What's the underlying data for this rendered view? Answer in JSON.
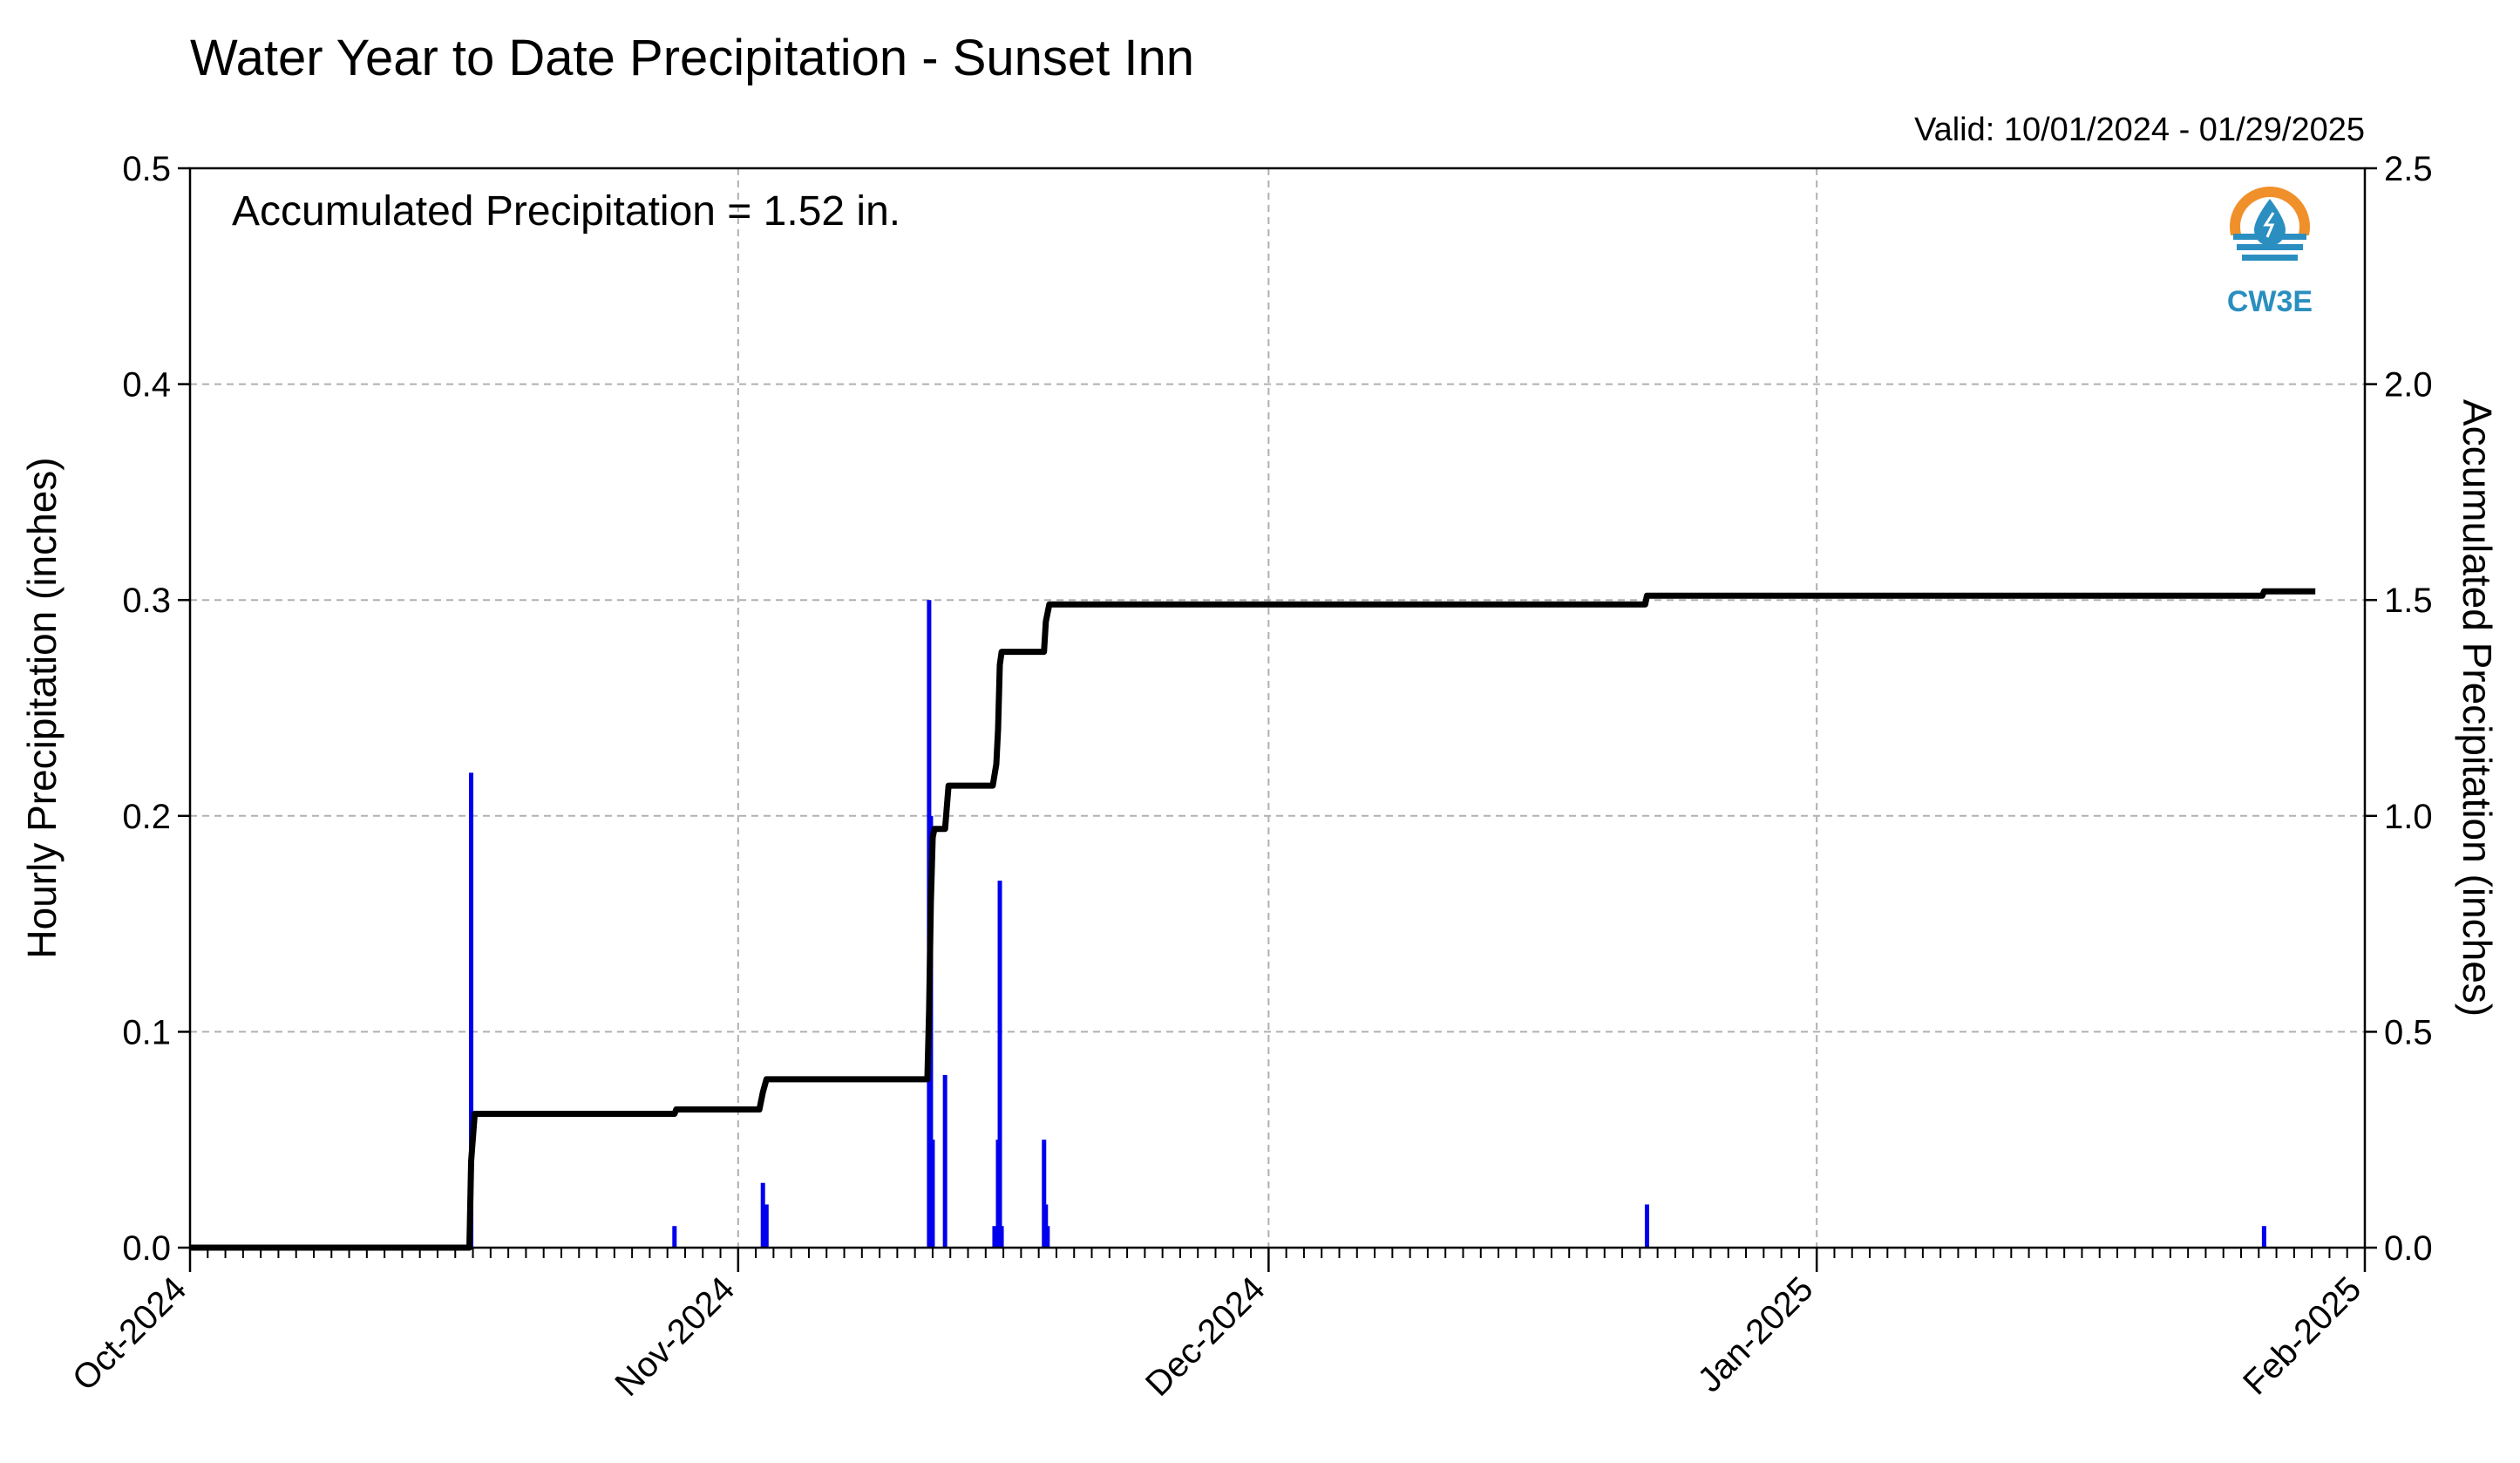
{
  "chart_data": {
    "type": "bar+line",
    "title": "Water Year to Date Precipitation - Sunset Inn",
    "valid_text": "Valid: 10/01/2024 - 01/29/2025",
    "annotation": "Accumulated Precipitation = 1.52 in.",
    "logo_text": "CW3E",
    "ylabel_left": "Hourly Precipitation (inches)",
    "ylabel_right": "Accumulated Precipitation (inches)",
    "ylim_left": [
      0,
      0.5
    ],
    "ylim_right": [
      0,
      2.5
    ],
    "yticks_left": [
      "0.0",
      "0.1",
      "0.2",
      "0.3",
      "0.4",
      "0.5"
    ],
    "yticks_right": [
      "0.0",
      "0.5",
      "1.0",
      "1.5",
      "2.0",
      "2.5"
    ],
    "xlim_days": [
      0,
      123
    ],
    "xticks": [
      {
        "label": "Oct-2024",
        "day": 0
      },
      {
        "label": "Nov-2024",
        "day": 31
      },
      {
        "label": "Dec-2024",
        "day": 61
      },
      {
        "label": "Jan-2025",
        "day": 92
      },
      {
        "label": "Feb-2025",
        "day": 123
      }
    ],
    "grid": true,
    "colors": {
      "hourly": "#0000ee",
      "accumulated": "#000000",
      "logo_orange": "#f0902a",
      "logo_blue": "#2a8fc0"
    },
    "series": [
      {
        "name": "Hourly Precipitation",
        "axis": "left",
        "points": [
          [
            15.9,
            0.22
          ],
          [
            27.4,
            0.01
          ],
          [
            32.4,
            0.03
          ],
          [
            32.6,
            0.02
          ],
          [
            41.8,
            0.3
          ],
          [
            41.9,
            0.2
          ],
          [
            42.0,
            0.05
          ],
          [
            42.7,
            0.08
          ],
          [
            45.5,
            0.01
          ],
          [
            45.7,
            0.05
          ],
          [
            45.8,
            0.17
          ],
          [
            45.9,
            0.01
          ],
          [
            48.3,
            0.05
          ],
          [
            48.4,
            0.02
          ],
          [
            48.5,
            0.01
          ],
          [
            82.4,
            0.02
          ],
          [
            117.3,
            0.01
          ]
        ]
      },
      {
        "name": "Accumulated Precipitation",
        "axis": "right",
        "points": [
          [
            0,
            0
          ],
          [
            15.8,
            0
          ],
          [
            15.9,
            0.2
          ],
          [
            16.1,
            0.31
          ],
          [
            27.4,
            0.31
          ],
          [
            27.5,
            0.32
          ],
          [
            32.2,
            0.32
          ],
          [
            32.4,
            0.36
          ],
          [
            32.6,
            0.39
          ],
          [
            41.7,
            0.39
          ],
          [
            41.8,
            0.55
          ],
          [
            41.9,
            0.8
          ],
          [
            42.0,
            0.95
          ],
          [
            42.1,
            0.97
          ],
          [
            42.7,
            0.97
          ],
          [
            42.9,
            1.07
          ],
          [
            45.4,
            1.07
          ],
          [
            45.6,
            1.12
          ],
          [
            45.7,
            1.2
          ],
          [
            45.8,
            1.35
          ],
          [
            45.9,
            1.38
          ],
          [
            48.3,
            1.38
          ],
          [
            48.4,
            1.45
          ],
          [
            48.6,
            1.49
          ],
          [
            82.3,
            1.49
          ],
          [
            82.4,
            1.51
          ],
          [
            117.2,
            1.51
          ],
          [
            117.3,
            1.52
          ],
          [
            120.2,
            1.52
          ]
        ]
      }
    ]
  }
}
